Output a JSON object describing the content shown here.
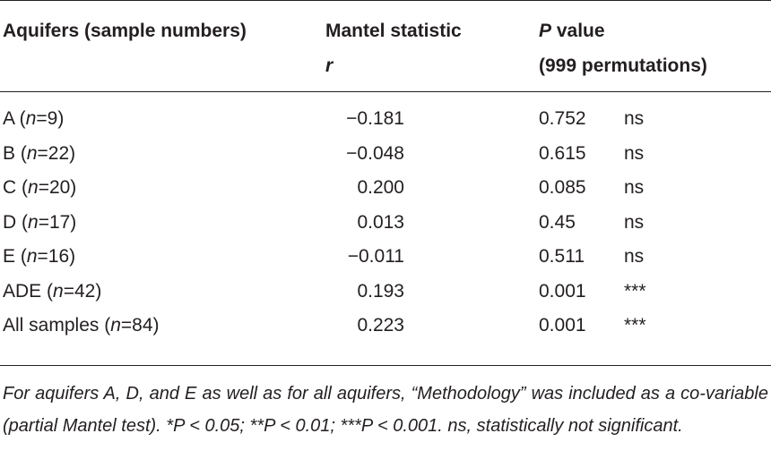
{
  "header": {
    "col1": "Aquifers (sample numbers)",
    "col2_line1": "Mantel statistic",
    "col2_line2": "r",
    "col3_line1_italic": "P",
    "col3_line1_rest": " value",
    "col3_line2": "(999 permutations)"
  },
  "rows": [
    {
      "label": "A (",
      "n": "n",
      "eq": "=9)",
      "r": "−0.181",
      "p": "0.752",
      "sig": "ns"
    },
    {
      "label": "B (",
      "n": "n",
      "eq": "=22)",
      "r": "−0.048",
      "p": "0.615",
      "sig": "ns"
    },
    {
      "label": "C (",
      "n": "n",
      "eq": "=20)",
      "r": "0.200",
      "p": "0.085",
      "sig": "ns"
    },
    {
      "label": "D (",
      "n": "n",
      "eq": "=17)",
      "r": "0.013",
      "p": "0.45",
      "sig": "ns"
    },
    {
      "label": "E (",
      "n": "n",
      "eq": "=16)",
      "r": "−0.011",
      "p": "0.511",
      "sig": "ns"
    },
    {
      "label": "ADE (",
      "n": "n",
      "eq": "=42)",
      "r": "0.193",
      "p": "0.001",
      "sig": "***"
    },
    {
      "label": "All samples (",
      "n": "n",
      "eq": "=84)",
      "r": "0.223",
      "p": "0.001",
      "sig": "***"
    }
  ],
  "footnote": "For aquifers A, D, and E as well as for all aquifers, “Methodology” was included as a co-variable (partial Mantel test). *P < 0.05; **P < 0.01; ***P < 0.001. ns, statistically not significant."
}
